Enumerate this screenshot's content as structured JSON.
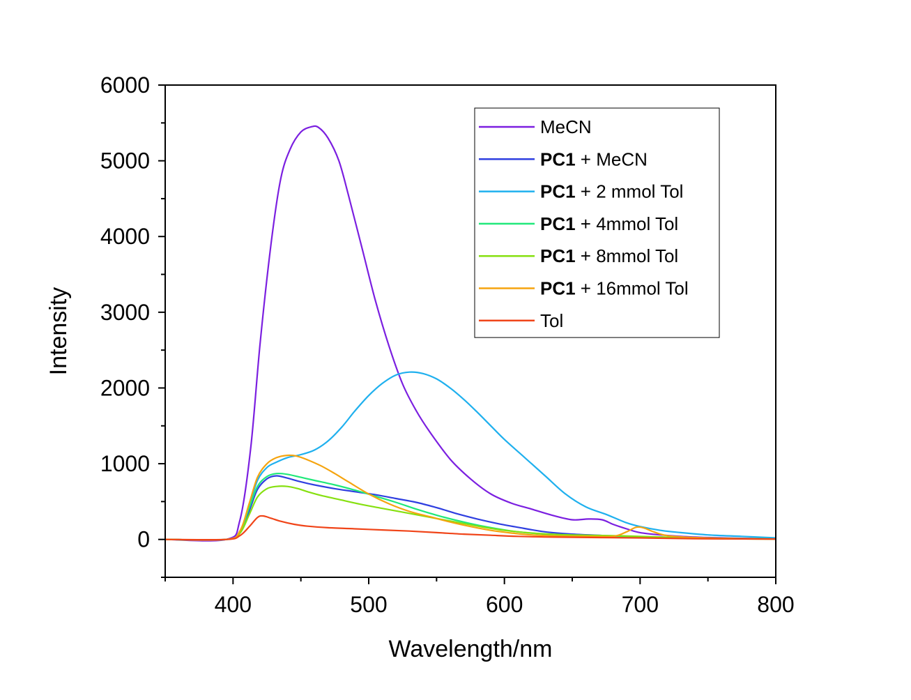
{
  "chart_data": {
    "type": "line",
    "title": "",
    "xlabel": "Wavelength/nm",
    "ylabel": "Intensity",
    "xlim": [
      350,
      800
    ],
    "ylim": [
      -500,
      6000
    ],
    "x_ticks": [
      400,
      500,
      600,
      700,
      800
    ],
    "y_ticks": [
      0,
      1000,
      2000,
      3000,
      4000,
      5000,
      6000
    ],
    "x_tick_labels": [
      "400",
      "500",
      "600",
      "700",
      "800"
    ],
    "y_tick_labels": [
      "0",
      "1000",
      "2000",
      "3000",
      "4000",
      "5000",
      "6000"
    ],
    "grid": false,
    "legend_position": "top-right",
    "series": [
      {
        "name": "MeCN",
        "legend_bold": "",
        "legend_rest": "MeCN",
        "color": "#7B1FE0",
        "x": [
          350,
          395,
          405,
          413,
          420,
          428,
          435,
          442,
          450,
          458,
          463,
          470,
          478,
          485,
          495,
          505,
          515,
          525,
          535,
          545,
          560,
          575,
          590,
          605,
          620,
          635,
          650,
          662,
          672,
          680,
          690,
          700,
          715,
          730,
          750,
          775,
          800
        ],
        "y": [
          0,
          0,
          250,
          1200,
          2600,
          3900,
          4750,
          5150,
          5380,
          5450,
          5440,
          5300,
          5000,
          4550,
          3850,
          3150,
          2550,
          2050,
          1700,
          1420,
          1060,
          800,
          600,
          480,
          400,
          320,
          260,
          270,
          260,
          200,
          140,
          90,
          60,
          40,
          25,
          15,
          10
        ]
      },
      {
        "name": "PC1 + MeCN",
        "legend_bold": "PC1",
        "legend_rest": " + MeCN",
        "color": "#2F3FE0",
        "x": [
          350,
          395,
          405,
          412,
          418,
          425,
          432,
          440,
          450,
          460,
          475,
          490,
          505,
          520,
          535,
          550,
          565,
          580,
          595,
          610,
          630,
          650,
          675,
          700,
          730,
          760,
          800
        ],
        "y": [
          0,
          0,
          90,
          380,
          660,
          800,
          840,
          810,
          760,
          720,
          670,
          630,
          590,
          540,
          490,
          420,
          340,
          270,
          210,
          160,
          100,
          70,
          50,
          35,
          25,
          15,
          5
        ]
      },
      {
        "name": "PC1 + 2 mmol Tol",
        "legend_bold": "PC1",
        "legend_rest": " + 2 mmol Tol",
        "color": "#1FB0EE",
        "x": [
          350,
          395,
          405,
          412,
          418,
          425,
          432,
          440,
          450,
          460,
          470,
          480,
          490,
          500,
          510,
          520,
          530,
          540,
          550,
          560,
          570,
          580,
          590,
          600,
          615,
          630,
          645,
          660,
          675,
          690,
          700,
          715,
          730,
          750,
          775,
          800
        ],
        "y": [
          0,
          0,
          100,
          450,
          780,
          950,
          1020,
          1080,
          1120,
          1180,
          1300,
          1480,
          1700,
          1900,
          2060,
          2170,
          2210,
          2190,
          2120,
          2000,
          1850,
          1680,
          1500,
          1320,
          1080,
          840,
          600,
          430,
          330,
          220,
          170,
          120,
          90,
          60,
          40,
          20
        ]
      },
      {
        "name": "PC1 + 4mmol Tol",
        "legend_bold": "PC1",
        "legend_rest": " + 4mmol Tol",
        "color": "#1FE87A",
        "x": [
          350,
          395,
          405,
          412,
          418,
          425,
          432,
          440,
          450,
          460,
          475,
          490,
          505,
          520,
          535,
          550,
          565,
          580,
          595,
          610,
          630,
          650,
          675,
          700,
          730,
          760,
          800
        ],
        "y": [
          0,
          0,
          100,
          420,
          700,
          830,
          870,
          860,
          820,
          780,
          720,
          650,
          570,
          490,
          400,
          320,
          250,
          190,
          140,
          100,
          70,
          55,
          45,
          30,
          20,
          10,
          5
        ]
      },
      {
        "name": "PC1 + 8mmol Tol",
        "legend_bold": "PC1",
        "legend_rest": " + 8mmol Tol",
        "color": "#86E010",
        "x": [
          350,
          395,
          405,
          412,
          418,
          425,
          432,
          440,
          448,
          455,
          465,
          480,
          495,
          510,
          525,
          540,
          555,
          570,
          585,
          600,
          620,
          640,
          660,
          680,
          700,
          730,
          760,
          800
        ],
        "y": [
          0,
          0,
          80,
          330,
          560,
          670,
          700,
          700,
          670,
          630,
          580,
          520,
          460,
          410,
          360,
          310,
          260,
          210,
          160,
          120,
          85,
          65,
          55,
          50,
          40,
          25,
          15,
          5
        ]
      },
      {
        "name": "PC1 + 16mmol Tol",
        "legend_bold": "PC1",
        "legend_rest": " + 16mmol Tol",
        "color": "#F5A40F",
        "x": [
          350,
          395,
          405,
          412,
          418,
          425,
          432,
          440,
          447,
          455,
          465,
          475,
          485,
          500,
          515,
          530,
          545,
          560,
          575,
          590,
          605,
          620,
          640,
          660,
          680,
          690,
          697,
          703,
          710,
          720,
          740,
          770,
          800
        ],
        "y": [
          0,
          0,
          110,
          480,
          820,
          1000,
          1080,
          1110,
          1100,
          1050,
          970,
          870,
          760,
          600,
          470,
          370,
          300,
          230,
          170,
          120,
          85,
          60,
          45,
          40,
          40,
          100,
          160,
          150,
          100,
          50,
          25,
          10,
          5
        ]
      },
      {
        "name": "Tol",
        "legend_bold": "",
        "legend_rest": "Tol",
        "color": "#F04418",
        "x": [
          350,
          395,
          405,
          412,
          418,
          422,
          428,
          435,
          445,
          455,
          470,
          490,
          510,
          530,
          550,
          570,
          590,
          610,
          640,
          670,
          700,
          740,
          800
        ],
        "y": [
          0,
          0,
          50,
          170,
          290,
          310,
          280,
          240,
          200,
          175,
          155,
          140,
          125,
          110,
          90,
          70,
          55,
          40,
          30,
          25,
          20,
          10,
          5
        ]
      }
    ]
  }
}
